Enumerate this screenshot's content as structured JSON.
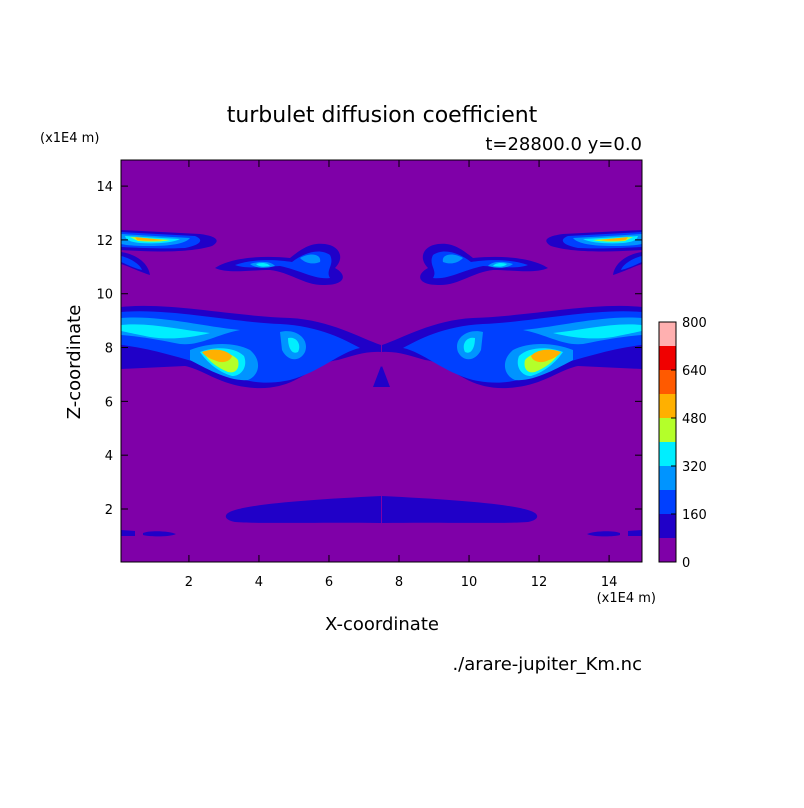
{
  "chart_data": {
    "type": "contour",
    "title": "turbulet diffusion coefficient",
    "subtitle": "t=28800.0 y=0.0",
    "x_label": "X-coordinate",
    "y_label": "Z-coordinate",
    "x_unit": "(x1E4 m)",
    "y_unit": "(x1E4 m)",
    "source": "./arare-jupiter_Km.nc",
    "xlim": [
      0.06,
      14.94
    ],
    "ylim": [
      0.03,
      14.97
    ],
    "xticks": [
      2,
      4,
      6,
      8,
      10,
      12,
      14
    ],
    "yticks": [
      2,
      4,
      6,
      8,
      10,
      12,
      14
    ],
    "levels": [
      0,
      80,
      160,
      240,
      320,
      400,
      480,
      560,
      640,
      720,
      800
    ],
    "colors": [
      "#7f00a8",
      "#2000c8",
      "#0040ff",
      "#0094ff",
      "#00eeff",
      "#b4ff2a",
      "#ffb000",
      "#ff5a00",
      "#f00000",
      "#ffb0b0"
    ],
    "colorbar_ticks": [
      0,
      160,
      320,
      480,
      640,
      800
    ]
  }
}
